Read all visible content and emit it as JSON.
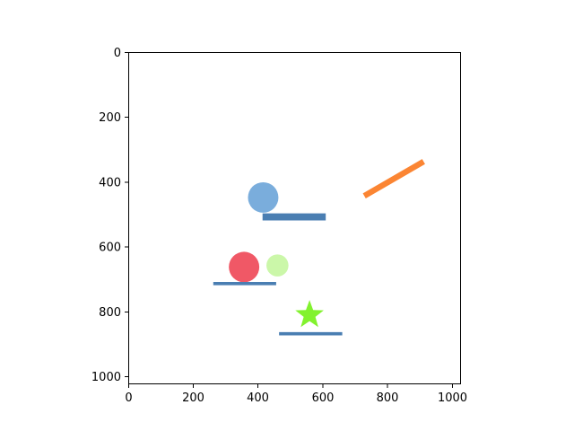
{
  "scene": {
    "x_ticks": [
      "0",
      "200",
      "400",
      "600",
      "800",
      "1000"
    ],
    "y_ticks": [
      "0",
      "200",
      "400",
      "600",
      "800",
      "1000"
    ],
    "xlim": [
      0,
      1024
    ],
    "ylim": [
      1024,
      0
    ],
    "objects": [
      {
        "name": "blue-ball",
        "shape": "circle",
        "cx": 415,
        "cy": 448,
        "r": 47,
        "color": "#7aaddc"
      },
      {
        "name": "upper-blue-platform",
        "shape": "bar",
        "x1": 413,
        "y1": 508,
        "x2": 608,
        "y2": 508,
        "thickness": 22,
        "color": "#4a7eb2"
      },
      {
        "name": "orange-tilted-bar",
        "shape": "bar",
        "x1": 727,
        "y1": 443,
        "x2": 910,
        "y2": 337,
        "thickness": 18,
        "color": "#fb8533"
      },
      {
        "name": "red-ball",
        "shape": "circle",
        "cx": 356,
        "cy": 663,
        "r": 47,
        "color": "#f05866"
      },
      {
        "name": "light-green-ball",
        "shape": "circle",
        "cx": 459,
        "cy": 658,
        "r": 34,
        "color": "#cbf7a9"
      },
      {
        "name": "middle-blue-platform",
        "shape": "bar",
        "x1": 261,
        "y1": 714,
        "x2": 455,
        "y2": 714,
        "thickness": 10,
        "color": "#4a7eb2"
      },
      {
        "name": "green-star",
        "shape": "star",
        "cx": 558,
        "cy": 811,
        "r_outer": 46,
        "r_inner": 19,
        "color": "#82f22e"
      },
      {
        "name": "lower-blue-platform",
        "shape": "bar",
        "x1": 464,
        "y1": 869,
        "x2": 659,
        "y2": 869,
        "thickness": 10,
        "color": "#4a7eb2"
      }
    ]
  }
}
